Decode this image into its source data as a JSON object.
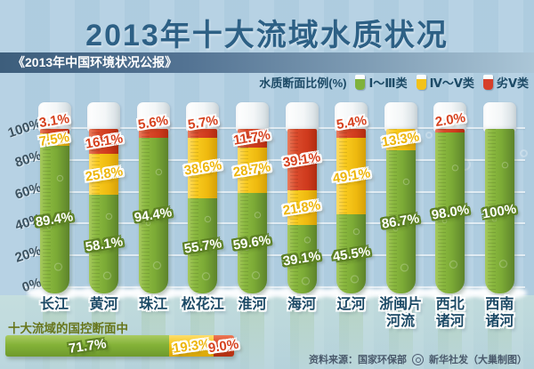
{
  "title": "2013年十大流域水质状况",
  "subtitle": "《2013年中国环境状况公报》",
  "legend": {
    "label": "水质断面比例(%)",
    "items": [
      {
        "name": "Ⅰ～Ⅲ类",
        "color": "#7fb23c"
      },
      {
        "name": "Ⅳ～Ⅴ类",
        "color": "#f2c21a"
      },
      {
        "name": "劣Ⅴ类",
        "color": "#d6402a"
      }
    ]
  },
  "chart_data": {
    "type": "bar",
    "stacked": true,
    "unit": "%",
    "title": "2013年十大流域水质状况",
    "categories": [
      "长江",
      "黄河",
      "珠江",
      "松花江",
      "淮河",
      "海河",
      "辽河",
      "浙闽片河流",
      "西北诸河",
      "西南诸河"
    ],
    "categories_display": [
      "长江",
      "黄河",
      "珠江",
      "松花江",
      "淮河",
      "海河",
      "辽河",
      "浙闽片\n河流",
      "西北\n诸河",
      "西南\n诸河"
    ],
    "series": [
      {
        "name": "Ⅰ～Ⅲ类",
        "color": "#7fb23c",
        "values": [
          89.4,
          58.1,
          94.4,
          55.7,
          59.6,
          39.1,
          45.5,
          86.7,
          98.0,
          100
        ]
      },
      {
        "name": "Ⅳ～Ⅴ类",
        "color": "#f2c21a",
        "values": [
          7.5,
          25.8,
          0,
          38.6,
          28.7,
          21.8,
          49.1,
          13.3,
          0,
          0
        ]
      },
      {
        "name": "劣Ⅴ类",
        "color": "#d6402a",
        "values": [
          3.1,
          16.1,
          5.6,
          5.7,
          11.7,
          39.1,
          5.4,
          0,
          2.0,
          0
        ]
      }
    ],
    "y_ticks": [
      "100%",
      "80%",
      "60%",
      "40%",
      "20%",
      "0%"
    ],
    "ylim": [
      0,
      100
    ],
    "grid": true,
    "legend_position": "top-right"
  },
  "summary": {
    "caption": "十大流域的国控断面中",
    "segments": [
      {
        "label": "71.7%",
        "value": 71.7,
        "class_name": "Ⅰ～Ⅲ类"
      },
      {
        "label": "19.3%",
        "value": 19.3,
        "class_name": "Ⅳ～Ⅴ类"
      },
      {
        "label": "9.0%",
        "value": 9.0,
        "class_name": "劣Ⅴ类"
      }
    ]
  },
  "source": {
    "label": "资料来源：国家环保部",
    "credit": "新华社发（大巢制图）"
  },
  "colors": {
    "background": "#b2cfe2",
    "title_text": "#2d6085",
    "band": "#3d5e7c",
    "green": "#7fb23c",
    "yellow": "#f2c21a",
    "red": "#d6402a",
    "axis_text": "#3c5260",
    "category_text": "#1c4a66",
    "caption_text": "#67761c"
  }
}
